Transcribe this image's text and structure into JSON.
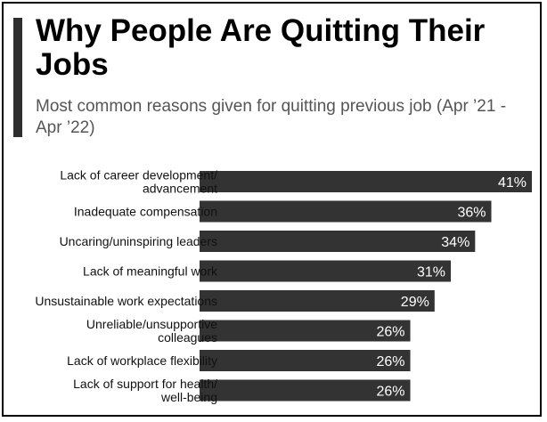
{
  "header": {
    "title": "Why People Are Quitting Their Jobs",
    "subtitle": "Most common reasons given for quitting previous job (Apr ’21 - Apr ’22)"
  },
  "colors": {
    "bar": "#333333",
    "accent": "#2e2e2e",
    "bar_text": "#ffffff"
  },
  "chart_data": {
    "type": "bar",
    "orientation": "horizontal",
    "title": "Why People Are Quitting Their Jobs",
    "subtitle": "Most common reasons given for quitting previous job (Apr ’21 - Apr ’22)",
    "categories": [
      [
        "Lack of career development/",
        "advancement"
      ],
      [
        "Inadequate compensation"
      ],
      [
        "Uncaring/uninspiring leaders"
      ],
      [
        "Lack of meaningful work"
      ],
      [
        "Unsustainable work expectations"
      ],
      [
        "Unreliable/unsupportive",
        "colleagues"
      ],
      [
        "Lack of workplace flexibility"
      ],
      [
        "Lack of support for health/",
        "well-being"
      ]
    ],
    "values": [
      41,
      36,
      34,
      31,
      29,
      26,
      26,
      26
    ],
    "value_labels": [
      "41%",
      "36%",
      "34%",
      "31%",
      "29%",
      "26%",
      "26%",
      "26%"
    ],
    "unit": "%",
    "xlim": [
      0,
      41
    ],
    "grid": false,
    "legend": "none"
  }
}
